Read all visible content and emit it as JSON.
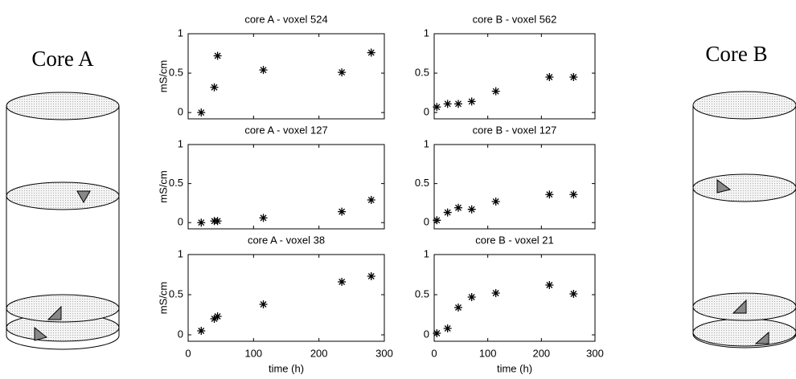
{
  "diagram": {
    "core_a": "Core A",
    "core_b": "Core B"
  },
  "chart_data": [
    {
      "type": "scatter",
      "title": "core A - voxel 524",
      "ylabel": "mS/cm",
      "show_xtick_labels": false,
      "x": [
        20,
        40,
        45,
        115,
        235,
        280
      ],
      "values": [
        0,
        0.32,
        0.72,
        0.54,
        0.51,
        0.76
      ],
      "xlim": [
        0,
        300
      ],
      "ylim": [
        -0.08,
        1
      ],
      "xticks": [
        0,
        100,
        200,
        300
      ],
      "yticks": [
        0,
        0.5,
        1
      ],
      "color": "#000000"
    },
    {
      "type": "scatter",
      "title": "core B - voxel 562",
      "show_xtick_labels": false,
      "x": [
        5,
        25,
        45,
        70,
        115,
        215,
        260
      ],
      "values": [
        0.07,
        0.11,
        0.11,
        0.14,
        0.27,
        0.45,
        0.45
      ],
      "xlim": [
        0,
        300
      ],
      "ylim": [
        -0.08,
        1
      ],
      "xticks": [
        0,
        100,
        200,
        300
      ],
      "yticks": [
        0,
        0.5,
        1
      ],
      "color": "#000000"
    },
    {
      "type": "scatter",
      "title": "core A - voxel 127",
      "ylabel": "mS/cm",
      "show_xtick_labels": false,
      "x": [
        20,
        40,
        45,
        115,
        235,
        280
      ],
      "values": [
        0,
        0.02,
        0.02,
        0.06,
        0.14,
        0.29
      ],
      "xlim": [
        0,
        300
      ],
      "ylim": [
        -0.08,
        1
      ],
      "xticks": [
        0,
        100,
        200,
        300
      ],
      "yticks": [
        0,
        0.5,
        1
      ],
      "color": "#000000"
    },
    {
      "type": "scatter",
      "title": "core B - voxel 127",
      "show_xtick_labels": false,
      "x": [
        5,
        25,
        45,
        70,
        115,
        215,
        260
      ],
      "values": [
        0.03,
        0.13,
        0.19,
        0.17,
        0.27,
        0.36,
        0.36
      ],
      "xlim": [
        0,
        300
      ],
      "ylim": [
        -0.08,
        1
      ],
      "xticks": [
        0,
        100,
        200,
        300
      ],
      "yticks": [
        0,
        0.5,
        1
      ],
      "color": "#000000"
    },
    {
      "type": "scatter",
      "title": "core A - voxel 38",
      "ylabel": "mS/cm",
      "xlabel": "time (h)",
      "show_xtick_labels": true,
      "x": [
        20,
        40,
        45,
        115,
        235,
        280
      ],
      "values": [
        0.05,
        0.2,
        0.23,
        0.38,
        0.66,
        0.73
      ],
      "xlim": [
        0,
        300
      ],
      "ylim": [
        -0.08,
        1
      ],
      "xticks": [
        0,
        100,
        200,
        300
      ],
      "yticks": [
        0,
        0.5,
        1
      ],
      "color": "#000000"
    },
    {
      "type": "scatter",
      "title": "core B - voxel 21",
      "xlabel": "time (h)",
      "show_xtick_labels": true,
      "x": [
        5,
        25,
        45,
        70,
        115,
        215,
        260
      ],
      "values": [
        0.02,
        0.08,
        0.34,
        0.47,
        0.52,
        0.62,
        0.51
      ],
      "xlim": [
        0,
        300
      ],
      "ylim": [
        -0.08,
        1
      ],
      "xticks": [
        0,
        100,
        200,
        300
      ],
      "yticks": [
        0,
        0.5,
        1
      ],
      "color": "#000000"
    }
  ]
}
